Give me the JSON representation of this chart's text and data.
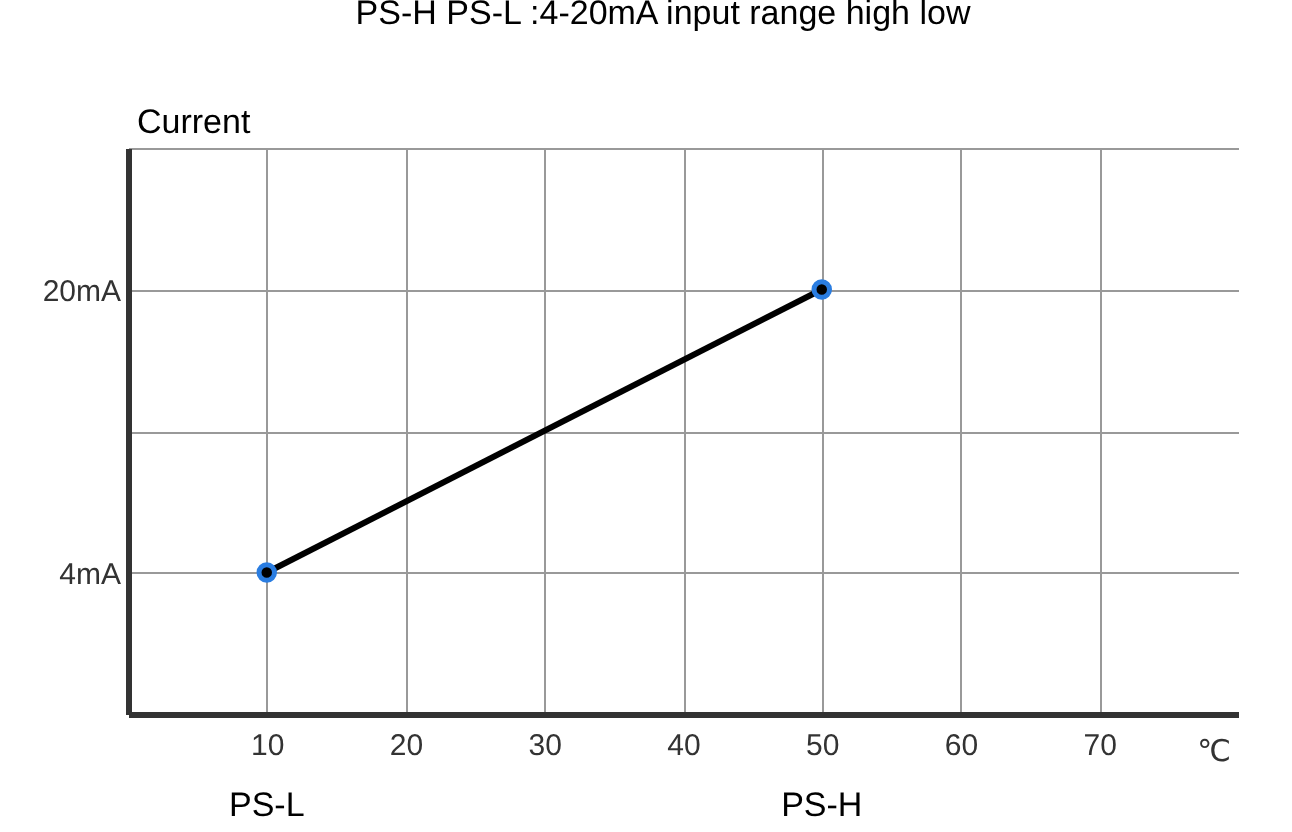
{
  "chart_data": {
    "type": "line",
    "title": "PS-H PS-L :4-20mA  input range high  low",
    "xlabel": "℃",
    "ylabel": "Current",
    "x": [
      10,
      50
    ],
    "series": [
      {
        "color": "#000000",
        "values": [
          4,
          20
        ]
      }
    ],
    "xlim": [
      0,
      80
    ],
    "xticks": [
      10,
      20,
      30,
      40,
      50,
      60,
      70
    ],
    "ylim": [
      -4,
      28
    ],
    "yticks": [
      {
        "value": 4,
        "label": "4mA"
      },
      {
        "value": 12,
        "label": null
      },
      {
        "value": 20,
        "label": "20mA"
      },
      {
        "value": 28,
        "label": null
      }
    ],
    "annotations": [
      "PS-L",
      "PS-H"
    ],
    "grid": true,
    "marker": "circle",
    "line_style": "solid"
  }
}
